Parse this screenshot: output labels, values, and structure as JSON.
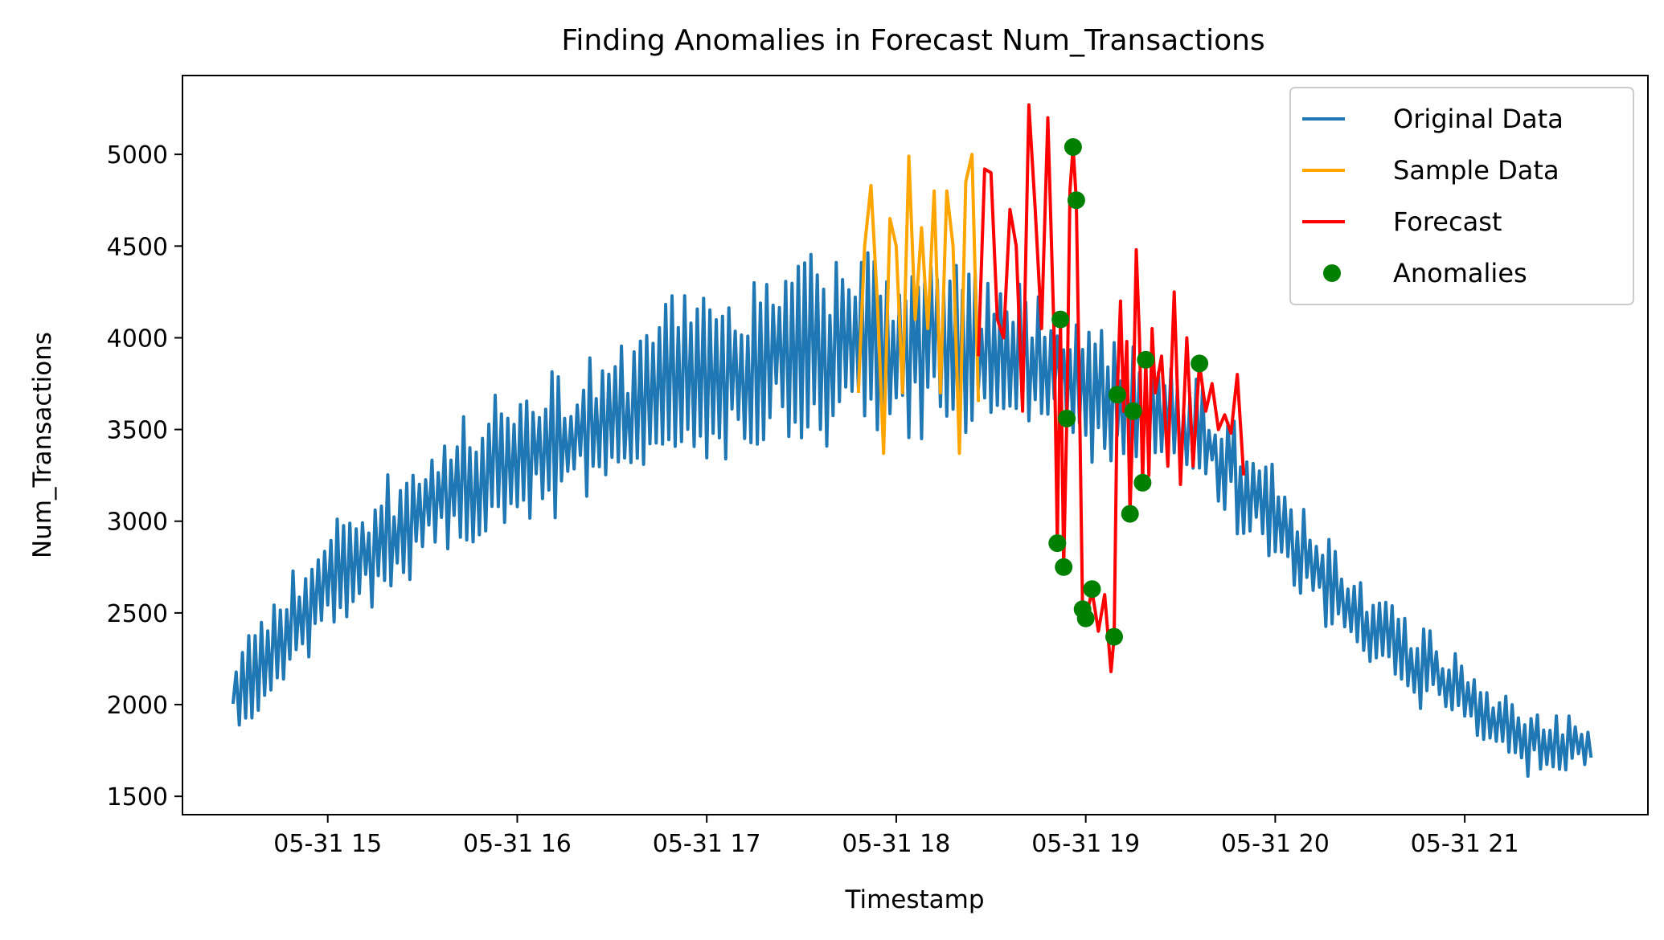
{
  "chart_data": {
    "type": "line",
    "title": "Finding Anomalies in Forecast Num_Transactions",
    "xlabel": "Timestamp",
    "ylabel": "Num_Transactions",
    "x_ticks": [
      "05-31 15",
      "05-31 16",
      "05-31 17",
      "05-31 18",
      "05-31 19",
      "05-31 20",
      "05-31 21"
    ],
    "y_ticks": [
      "1500",
      "2000",
      "2500",
      "3000",
      "3500",
      "4000",
      "4500",
      "5000"
    ],
    "xlim": [
      "2024-05-31T14:14",
      "2024-05-31T21:58"
    ],
    "ylim": [
      1400,
      5430
    ],
    "grid": false,
    "legend_position": "top-right",
    "colors": {
      "original": "#1f77b4",
      "sample": "#ffa500",
      "forecast": "#ff0000",
      "anomalies": "#008000"
    },
    "series": [
      {
        "name": "Original Data",
        "kind": "line",
        "color": "#1f77b4",
        "x_start": "2024-05-31T14:30",
        "x_end": "2024-05-31T21:40",
        "shape_keypoints": [
          [
            "2024-05-31T14:30",
            2050
          ],
          [
            "2024-05-31T15:00",
            2700
          ],
          [
            "2024-05-31T15:30",
            3050
          ],
          [
            "2024-05-31T16:00",
            3350
          ],
          [
            "2024-05-31T16:30",
            3600
          ],
          [
            "2024-05-31T17:00",
            3800
          ],
          [
            "2024-05-31T17:30",
            3950
          ],
          [
            "2024-05-31T17:50",
            4000
          ],
          [
            "2024-05-31T18:40",
            3900
          ],
          [
            "2024-05-31T19:00",
            3700
          ],
          [
            "2024-05-31T19:20",
            3600
          ],
          [
            "2024-05-31T19:40",
            3400
          ],
          [
            "2024-05-31T20:00",
            3000
          ],
          [
            "2024-05-31T20:30",
            2400
          ],
          [
            "2024-05-31T21:00",
            2050
          ],
          [
            "2024-05-31T21:20",
            1800
          ],
          [
            "2024-05-31T21:40",
            1780
          ]
        ],
        "amplitude_keypoints": [
          [
            "2024-05-31T14:30",
            250
          ],
          [
            "2024-05-31T16:00",
            350
          ],
          [
            "2024-05-31T17:00",
            450
          ],
          [
            "2024-05-31T17:50",
            500
          ],
          [
            "2024-05-31T19:00",
            350
          ],
          [
            "2024-05-31T20:00",
            250
          ],
          [
            "2024-05-31T21:40",
            150
          ]
        ]
      },
      {
        "name": "Sample Data",
        "kind": "line",
        "color": "#ffa500",
        "points": [
          [
            "2024-05-31T17:48",
            3700
          ],
          [
            "2024-05-31T17:50",
            4500
          ],
          [
            "2024-05-31T17:52",
            4830
          ],
          [
            "2024-05-31T17:54",
            4200
          ],
          [
            "2024-05-31T17:56",
            3370
          ],
          [
            "2024-05-31T17:58",
            4650
          ],
          [
            "2024-05-31T18:00",
            4500
          ],
          [
            "2024-05-31T18:02",
            3700
          ],
          [
            "2024-05-31T18:04",
            4990
          ],
          [
            "2024-05-31T18:06",
            4100
          ],
          [
            "2024-05-31T18:08",
            4600
          ],
          [
            "2024-05-31T18:10",
            4050
          ],
          [
            "2024-05-31T18:12",
            4800
          ],
          [
            "2024-05-31T18:14",
            3700
          ],
          [
            "2024-05-31T18:16",
            4800
          ],
          [
            "2024-05-31T18:18",
            4500
          ],
          [
            "2024-05-31T18:20",
            3370
          ],
          [
            "2024-05-31T18:22",
            4850
          ],
          [
            "2024-05-31T18:24",
            5000
          ],
          [
            "2024-05-31T18:26",
            3650
          ]
        ]
      },
      {
        "name": "Forecast",
        "kind": "line",
        "color": "#ff0000",
        "points": [
          [
            "2024-05-31T18:26",
            3900
          ],
          [
            "2024-05-31T18:28",
            4920
          ],
          [
            "2024-05-31T18:30",
            4900
          ],
          [
            "2024-05-31T18:32",
            4100
          ],
          [
            "2024-05-31T18:34",
            4000
          ],
          [
            "2024-05-31T18:36",
            4700
          ],
          [
            "2024-05-31T18:38",
            4500
          ],
          [
            "2024-05-31T18:40",
            3600
          ],
          [
            "2024-05-31T18:42",
            5270
          ],
          [
            "2024-05-31T18:44",
            4700
          ],
          [
            "2024-05-31T18:46",
            4050
          ],
          [
            "2024-05-31T18:48",
            5200
          ],
          [
            "2024-05-31T18:50",
            4000
          ],
          [
            "2024-05-31T18:51",
            2880
          ],
          [
            "2024-05-31T18:52",
            4100
          ],
          [
            "2024-05-31T18:53",
            2750
          ],
          [
            "2024-05-31T18:54",
            3560
          ],
          [
            "2024-05-31T18:55",
            4800
          ],
          [
            "2024-05-31T18:56",
            5040
          ],
          [
            "2024-05-31T18:57",
            4750
          ],
          [
            "2024-05-31T18:58",
            3700
          ],
          [
            "2024-05-31T18:59",
            2520
          ],
          [
            "2024-05-31T19:00",
            2470
          ],
          [
            "2024-05-31T19:02",
            2620
          ],
          [
            "2024-05-31T19:04",
            2400
          ],
          [
            "2024-05-31T19:06",
            2600
          ],
          [
            "2024-05-31T19:08",
            2180
          ],
          [
            "2024-05-31T19:09",
            2370
          ],
          [
            "2024-05-31T19:10",
            3700
          ],
          [
            "2024-05-31T19:11",
            4200
          ],
          [
            "2024-05-31T19:12",
            3600
          ],
          [
            "2024-05-31T19:13",
            3980
          ],
          [
            "2024-05-31T19:14",
            3040
          ],
          [
            "2024-05-31T19:15",
            3600
          ],
          [
            "2024-05-31T19:16",
            4480
          ],
          [
            "2024-05-31T19:17",
            4000
          ],
          [
            "2024-05-31T19:18",
            3210
          ],
          [
            "2024-05-31T19:19",
            3880
          ],
          [
            "2024-05-31T19:20",
            3250
          ],
          [
            "2024-05-31T19:21",
            4050
          ],
          [
            "2024-05-31T19:22",
            3700
          ],
          [
            "2024-05-31T19:24",
            3900
          ],
          [
            "2024-05-31T19:26",
            3300
          ],
          [
            "2024-05-31T19:28",
            4250
          ],
          [
            "2024-05-31T19:30",
            3200
          ],
          [
            "2024-05-31T19:32",
            4000
          ],
          [
            "2024-05-31T19:34",
            3300
          ],
          [
            "2024-05-31T19:36",
            3860
          ],
          [
            "2024-05-31T19:38",
            3600
          ],
          [
            "2024-05-31T19:40",
            3750
          ],
          [
            "2024-05-31T19:42",
            3500
          ],
          [
            "2024-05-31T19:44",
            3580
          ],
          [
            "2024-05-31T19:46",
            3480
          ],
          [
            "2024-05-31T19:48",
            3800
          ],
          [
            "2024-05-31T19:50",
            3250
          ]
        ]
      },
      {
        "name": "Anomalies",
        "kind": "scatter",
        "color": "#008000",
        "points": [
          [
            "2024-05-31T18:56",
            5040
          ],
          [
            "2024-05-31T18:57",
            4750
          ],
          [
            "2024-05-31T18:52",
            4100
          ],
          [
            "2024-05-31T18:54",
            3560
          ],
          [
            "2024-05-31T18:51",
            2880
          ],
          [
            "2024-05-31T18:53",
            2750
          ],
          [
            "2024-05-31T18:59",
            2520
          ],
          [
            "2024-05-31T19:00",
            2470
          ],
          [
            "2024-05-31T19:02",
            2630
          ],
          [
            "2024-05-31T19:09",
            2370
          ],
          [
            "2024-05-31T19:10",
            3690
          ],
          [
            "2024-05-31T19:14",
            3040
          ],
          [
            "2024-05-31T19:15",
            3600
          ],
          [
            "2024-05-31T19:18",
            3210
          ],
          [
            "2024-05-31T19:19",
            3880
          ],
          [
            "2024-05-31T19:36",
            3860
          ]
        ]
      }
    ],
    "legend": [
      "Original Data",
      "Sample Data",
      "Forecast",
      "Anomalies"
    ]
  }
}
